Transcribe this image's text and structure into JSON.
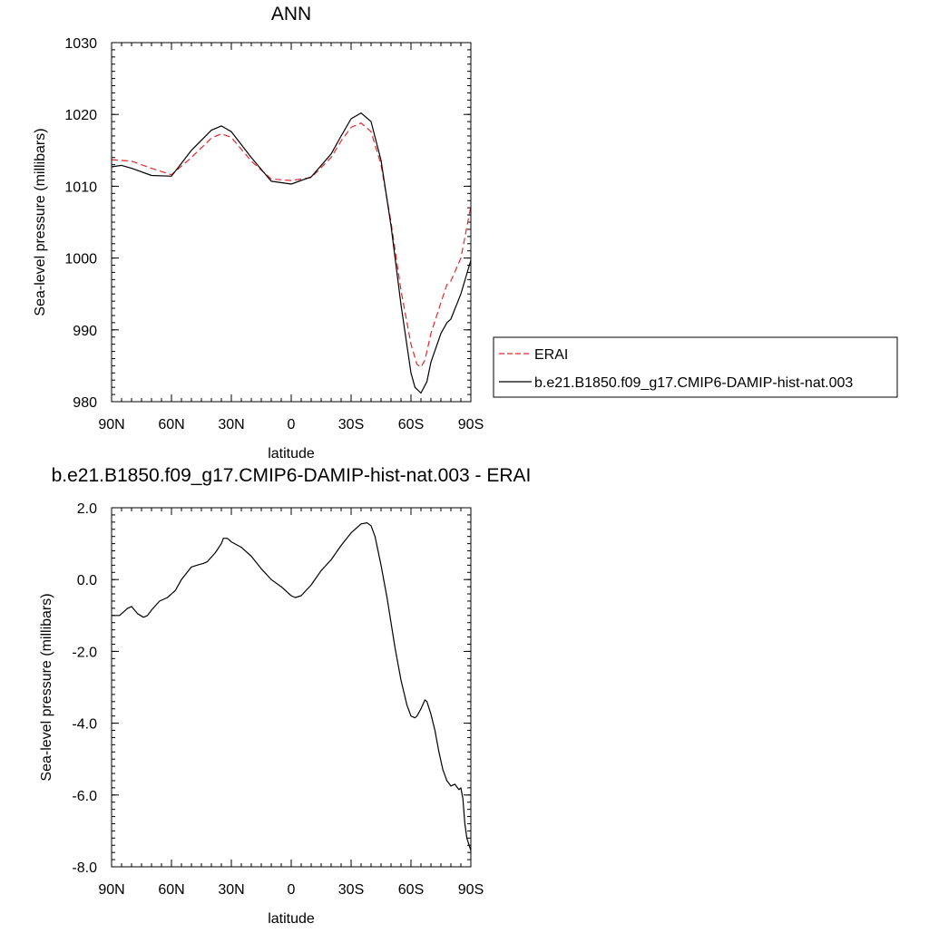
{
  "chart_data": [
    {
      "type": "line",
      "title": "ANN",
      "xlabel": "latitude",
      "ylabel": "Sea-level pressure (millibars)",
      "xlim": [
        90,
        -90
      ],
      "ylim": [
        980,
        1030
      ],
      "x_ticks": [
        {
          "value": 90,
          "label": "90N"
        },
        {
          "value": 60,
          "label": "60N"
        },
        {
          "value": 30,
          "label": "30N"
        },
        {
          "value": 0,
          "label": "0"
        },
        {
          "value": -30,
          "label": "30S"
        },
        {
          "value": -60,
          "label": "60S"
        },
        {
          "value": -90,
          "label": "90S"
        }
      ],
      "y_ticks": [
        {
          "value": 980,
          "label": "980"
        },
        {
          "value": 990,
          "label": "990"
        },
        {
          "value": 1000,
          "label": "1000"
        },
        {
          "value": 1010,
          "label": "1010"
        },
        {
          "value": 1020,
          "label": "1020"
        },
        {
          "value": 1030,
          "label": "1030"
        }
      ],
      "grid": false,
      "legend_position": "right",
      "series": [
        {
          "name": "ERAI",
          "color": "#e8262a",
          "dash": true,
          "x": [
            90,
            80,
            70,
            60,
            50,
            40,
            35,
            30,
            20,
            10,
            0,
            -10,
            -20,
            -25,
            -30,
            -35,
            -40,
            -45,
            -50,
            -55,
            -60,
            -63,
            -65,
            -67,
            -70,
            -75,
            -78,
            -80,
            -85,
            -90
          ],
          "y": [
            1013.7,
            1013.5,
            1012.5,
            1011.6,
            1014.0,
            1016.7,
            1017.3,
            1016.8,
            1013.5,
            1011.0,
            1010.8,
            1011.2,
            1014.0,
            1016.3,
            1018.2,
            1018.8,
            1017.6,
            1013.0,
            1005.0,
            995.5,
            988.0,
            985.2,
            984.8,
            985.8,
            989.5,
            993.8,
            996.3,
            996.8,
            1000.0,
            1007.2
          ]
        },
        {
          "name": "b.e21.B1850.f09_g17.CMIP6-DAMIP-hist-nat.003",
          "color": "#000000",
          "dash": false,
          "x": [
            90,
            85,
            80,
            70,
            60,
            55,
            50,
            40,
            35,
            30,
            20,
            10,
            0,
            -10,
            -20,
            -25,
            -30,
            -35,
            -40,
            -45,
            -50,
            -55,
            -60,
            -62,
            -65,
            -68,
            -70,
            -75,
            -78,
            -80,
            -85,
            -90
          ],
          "y": [
            1012.7,
            1012.9,
            1012.5,
            1011.5,
            1011.4,
            1013.2,
            1015.0,
            1017.8,
            1018.4,
            1017.6,
            1014.0,
            1010.7,
            1010.3,
            1011.3,
            1014.5,
            1017.0,
            1019.4,
            1020.2,
            1019.0,
            1013.6,
            1004.5,
            993.5,
            984.0,
            982.0,
            981.2,
            982.8,
            985.5,
            989.5,
            991.0,
            991.5,
            995.0,
            999.7
          ]
        }
      ]
    },
    {
      "type": "line",
      "title": "b.e21.B1850.f09_g17.CMIP6-DAMIP-hist-nat.003 - ERAI",
      "xlabel": "latitude",
      "ylabel": "Sea-level pressure (millibars)",
      "xlim": [
        90,
        -90
      ],
      "ylim": [
        -8.0,
        2.0
      ],
      "x_ticks": [
        {
          "value": 90,
          "label": "90N"
        },
        {
          "value": 60,
          "label": "60N"
        },
        {
          "value": 30,
          "label": "30N"
        },
        {
          "value": 0,
          "label": "0"
        },
        {
          "value": -30,
          "label": "30S"
        },
        {
          "value": -60,
          "label": "60S"
        },
        {
          "value": -90,
          "label": "90S"
        }
      ],
      "y_ticks": [
        {
          "value": -8,
          "label": "-8.0"
        },
        {
          "value": -6,
          "label": "-6.0"
        },
        {
          "value": -4,
          "label": "-4.0"
        },
        {
          "value": -2,
          "label": "-2.0"
        },
        {
          "value": 0,
          "label": "0.0"
        },
        {
          "value": 2,
          "label": "2.0"
        }
      ],
      "grid": false,
      "series": [
        {
          "color": "#000000",
          "dash": false,
          "x": [
            90,
            86,
            82,
            80,
            77,
            74,
            72,
            70,
            66,
            64,
            62,
            58,
            55,
            50,
            46,
            44,
            42,
            38,
            35,
            34,
            32,
            30,
            25,
            20,
            15,
            10,
            5,
            2,
            0,
            -2,
            -5,
            -10,
            -15,
            -20,
            -25,
            -30,
            -35,
            -38,
            -40,
            -42,
            -45,
            -48,
            -50,
            -52,
            -55,
            -58,
            -60,
            -62,
            -63,
            -65,
            -67,
            -68,
            -70,
            -72,
            -74,
            -76,
            -78,
            -80,
            -82,
            -84,
            -85,
            -86,
            -87,
            -88,
            -90
          ],
          "y": [
            -1.0,
            -1.0,
            -0.8,
            -0.75,
            -0.95,
            -1.05,
            -1.0,
            -0.85,
            -0.6,
            -0.55,
            -0.5,
            -0.3,
            0.0,
            0.35,
            0.42,
            0.45,
            0.5,
            0.75,
            1.0,
            1.15,
            1.15,
            1.05,
            0.9,
            0.65,
            0.3,
            0.0,
            -0.2,
            -0.35,
            -0.45,
            -0.5,
            -0.45,
            -0.15,
            0.25,
            0.55,
            0.95,
            1.3,
            1.55,
            1.58,
            1.5,
            1.2,
            0.4,
            -0.5,
            -1.2,
            -1.9,
            -2.8,
            -3.5,
            -3.8,
            -3.85,
            -3.8,
            -3.6,
            -3.35,
            -3.4,
            -3.75,
            -4.2,
            -4.8,
            -5.3,
            -5.6,
            -5.75,
            -5.7,
            -5.85,
            -5.8,
            -6.1,
            -6.8,
            -7.2,
            -7.55
          ]
        }
      ]
    }
  ],
  "legend": {
    "items": [
      {
        "label": "ERAI",
        "color": "#e8262a",
        "dash": true
      },
      {
        "label": "b.e21.B1850.f09_g17.CMIP6-DAMIP-hist-nat.003",
        "color": "#000000",
        "dash": false
      }
    ]
  }
}
